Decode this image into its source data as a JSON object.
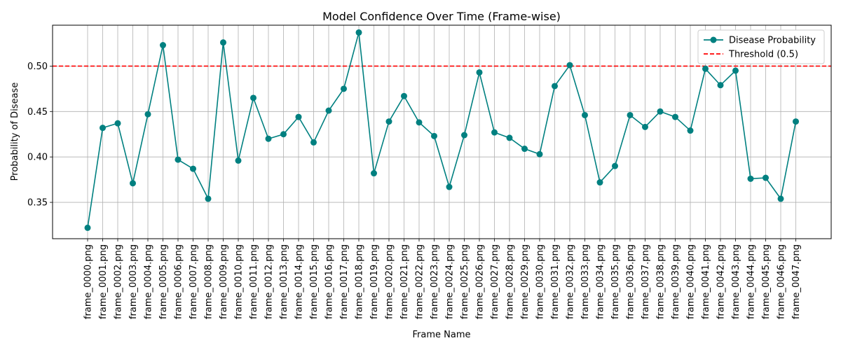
{
  "chart_data": {
    "type": "line",
    "title": "Model Confidence Over Time (Frame-wise)",
    "xlabel": "Frame Name",
    "ylabel": "Probability of Disease",
    "ylim": [
      0.31,
      0.545
    ],
    "yticks": [
      "0.35",
      "0.40",
      "0.45",
      "0.50"
    ],
    "grid": true,
    "legend_position": "top-right",
    "categories": [
      "frame_0000.png",
      "frame_0001.png",
      "frame_0002.png",
      "frame_0003.png",
      "frame_0004.png",
      "frame_0005.png",
      "frame_0006.png",
      "frame_0007.png",
      "frame_0008.png",
      "frame_0009.png",
      "frame_0010.png",
      "frame_0011.png",
      "frame_0012.png",
      "frame_0013.png",
      "frame_0014.png",
      "frame_0015.png",
      "frame_0016.png",
      "frame_0017.png",
      "frame_0018.png",
      "frame_0019.png",
      "frame_0020.png",
      "frame_0021.png",
      "frame_0022.png",
      "frame_0023.png",
      "frame_0024.png",
      "frame_0025.png",
      "frame_0026.png",
      "frame_0027.png",
      "frame_0028.png",
      "frame_0029.png",
      "frame_0030.png",
      "frame_0031.png",
      "frame_0032.png",
      "frame_0033.png",
      "frame_0034.png",
      "frame_0035.png",
      "frame_0036.png",
      "frame_0037.png",
      "frame_0038.png",
      "frame_0039.png",
      "frame_0040.png",
      "frame_0041.png",
      "frame_0042.png",
      "frame_0043.png",
      "frame_0044.png",
      "frame_0045.png",
      "frame_0046.png",
      "frame_0047.png"
    ],
    "series": [
      {
        "name": "Disease Probability",
        "color": "#008080",
        "marker": "circle",
        "values": [
          0.322,
          0.432,
          0.437,
          0.371,
          0.447,
          0.523,
          0.397,
          0.387,
          0.354,
          0.526,
          0.396,
          0.465,
          0.42,
          0.425,
          0.444,
          0.416,
          0.451,
          0.475,
          0.537,
          0.382,
          0.439,
          0.467,
          0.438,
          0.423,
          0.367,
          0.424,
          0.493,
          0.427,
          0.421,
          0.409,
          0.403,
          0.478,
          0.501,
          0.446,
          0.372,
          0.39,
          0.446,
          0.433,
          0.45,
          0.444,
          0.429,
          0.497,
          0.479,
          0.495,
          0.376,
          0.377,
          0.354,
          0.439
        ]
      }
    ],
    "threshold": {
      "name": "Threshold (0.5)",
      "value": 0.5,
      "color": "#ff0000",
      "style": "dashed"
    }
  }
}
